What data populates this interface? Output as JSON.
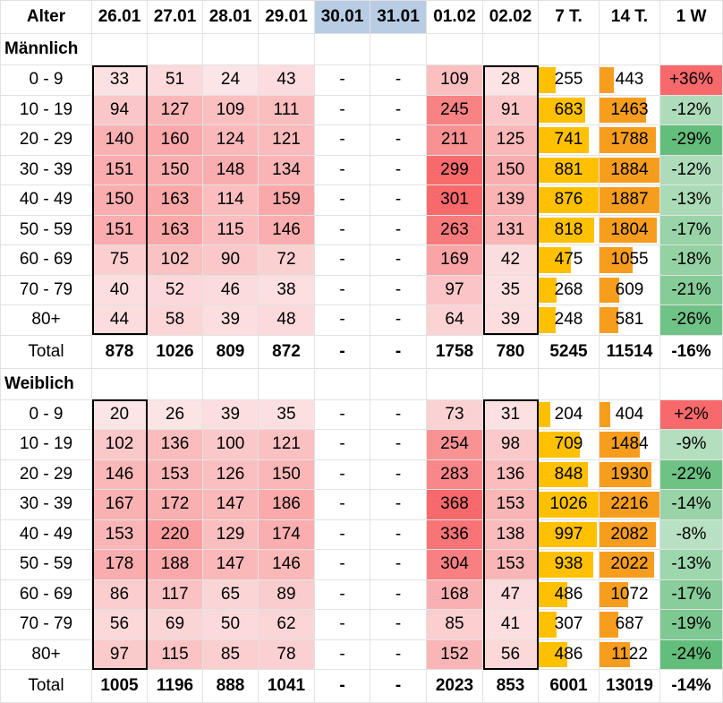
{
  "colors": {
    "heat_max": "#f8696b",
    "heat_min": "#fce5e6",
    "bar7": "#ffc000",
    "bar14": "#f79d1e",
    "pos_high": "#f8696b",
    "neg_high": "#63be7b",
    "header_blue": "#b8cce4"
  },
  "headers": [
    "Alter",
    "26.01",
    "27.01",
    "28.01",
    "29.01",
    "30.01",
    "31.01",
    "01.02",
    "02.02",
    "7 T.",
    "14 T.",
    "1 W"
  ],
  "chart_data": {
    "type": "table",
    "sections": [
      {
        "label": "Männlich",
        "rows": [
          {
            "age": "0 - 9",
            "days": [
              "33",
              "51",
              "24",
              "43",
              "-",
              "-",
              "109",
              "28"
            ],
            "t7": "255",
            "t14": "443",
            "w1": "+36%"
          },
          {
            "age": "10 - 19",
            "days": [
              "94",
              "127",
              "109",
              "111",
              "-",
              "-",
              "245",
              "91"
            ],
            "t7": "683",
            "t14": "1463",
            "w1": "-12%"
          },
          {
            "age": "20 - 29",
            "days": [
              "140",
              "160",
              "124",
              "121",
              "-",
              "-",
              "211",
              "125"
            ],
            "t7": "741",
            "t14": "1788",
            "w1": "-29%"
          },
          {
            "age": "30 - 39",
            "days": [
              "151",
              "150",
              "148",
              "134",
              "-",
              "-",
              "299",
              "150"
            ],
            "t7": "881",
            "t14": "1884",
            "w1": "-12%"
          },
          {
            "age": "40 - 49",
            "days": [
              "150",
              "163",
              "114",
              "159",
              "-",
              "-",
              "301",
              "139"
            ],
            "t7": "876",
            "t14": "1887",
            "w1": "-13%"
          },
          {
            "age": "50 - 59",
            "days": [
              "151",
              "163",
              "115",
              "146",
              "-",
              "-",
              "263",
              "131"
            ],
            "t7": "818",
            "t14": "1804",
            "w1": "-17%"
          },
          {
            "age": "60 - 69",
            "days": [
              "75",
              "102",
              "90",
              "72",
              "-",
              "-",
              "169",
              "42"
            ],
            "t7": "475",
            "t14": "1055",
            "w1": "-18%"
          },
          {
            "age": "70 - 79",
            "days": [
              "40",
              "52",
              "46",
              "38",
              "-",
              "-",
              "97",
              "35"
            ],
            "t7": "268",
            "t14": "609",
            "w1": "-21%"
          },
          {
            "age": "80+",
            "days": [
              "44",
              "58",
              "39",
              "48",
              "-",
              "-",
              "64",
              "39"
            ],
            "t7": "248",
            "t14": "581",
            "w1": "-26%"
          }
        ],
        "total": {
          "age": "Total",
          "days": [
            "878",
            "1026",
            "809",
            "872",
            "-",
            "-",
            "1758",
            "780"
          ],
          "t7": "5245",
          "t14": "11514",
          "w1": "-16%"
        }
      },
      {
        "label": "Weiblich",
        "rows": [
          {
            "age": "0 - 9",
            "days": [
              "20",
              "26",
              "39",
              "35",
              "-",
              "-",
              "73",
              "31"
            ],
            "t7": "204",
            "t14": "404",
            "w1": "+2%"
          },
          {
            "age": "10 - 19",
            "days": [
              "102",
              "136",
              "100",
              "121",
              "-",
              "-",
              "254",
              "98"
            ],
            "t7": "709",
            "t14": "1484",
            "w1": "-9%"
          },
          {
            "age": "20 - 29",
            "days": [
              "146",
              "153",
              "126",
              "150",
              "-",
              "-",
              "283",
              "136"
            ],
            "t7": "848",
            "t14": "1930",
            "w1": "-22%"
          },
          {
            "age": "30 - 39",
            "days": [
              "167",
              "172",
              "147",
              "186",
              "-",
              "-",
              "368",
              "153"
            ],
            "t7": "1026",
            "t14": "2216",
            "w1": "-14%"
          },
          {
            "age": "40 - 49",
            "days": [
              "153",
              "220",
              "129",
              "174",
              "-",
              "-",
              "336",
              "138"
            ],
            "t7": "997",
            "t14": "2082",
            "w1": "-8%"
          },
          {
            "age": "50 - 59",
            "days": [
              "178",
              "188",
              "147",
              "146",
              "-",
              "-",
              "304",
              "153"
            ],
            "t7": "938",
            "t14": "2022",
            "w1": "-13%"
          },
          {
            "age": "60 - 69",
            "days": [
              "86",
              "117",
              "65",
              "89",
              "-",
              "-",
              "168",
              "47"
            ],
            "t7": "486",
            "t14": "1072",
            "w1": "-17%"
          },
          {
            "age": "70 - 79",
            "days": [
              "56",
              "69",
              "50",
              "62",
              "-",
              "-",
              "85",
              "41"
            ],
            "t7": "307",
            "t14": "687",
            "w1": "-19%"
          },
          {
            "age": "80+",
            "days": [
              "97",
              "115",
              "85",
              "78",
              "-",
              "-",
              "152",
              "56"
            ],
            "t7": "486",
            "t14": "1122",
            "w1": "-24%"
          }
        ],
        "total": {
          "age": "Total",
          "days": [
            "1005",
            "1196",
            "888",
            "1041",
            "-",
            "-",
            "2023",
            "853"
          ],
          "t7": "6001",
          "t14": "13019",
          "w1": "-14%"
        }
      }
    ]
  }
}
